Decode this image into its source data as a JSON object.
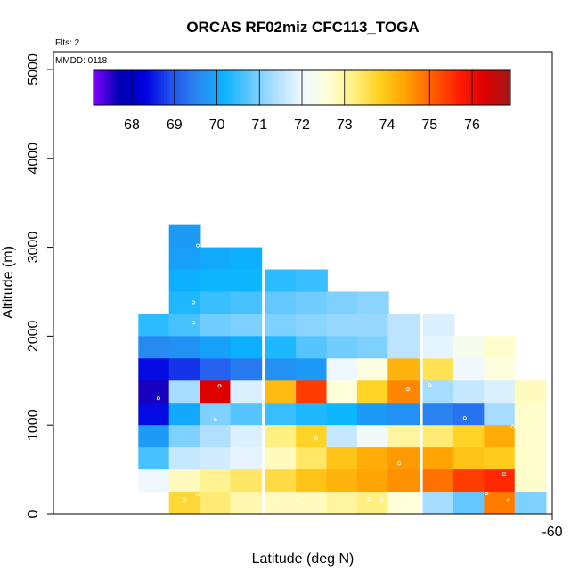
{
  "chart_data": {
    "type": "heatmap",
    "title": "ORCAS RF02miz CFC113_TOGA",
    "annotations": {
      "flights": "Flts: 2",
      "date": "MMDD: 0118"
    },
    "xlabel": "Latitude (deg N)",
    "ylabel": "Altitude (m)",
    "xlim": [
      -71.4,
      -60
    ],
    "ylim": [
      0,
      5200
    ],
    "x_tick_labels": [
      "-60"
    ],
    "y_tick_labels": [
      "0",
      "1000",
      "2000",
      "3000",
      "4000",
      "5000"
    ],
    "y_ticks": [
      0,
      1000,
      2000,
      3000,
      4000,
      5000
    ],
    "grid": false,
    "legend": "top (color bar)",
    "colorbar": {
      "min": 67.1,
      "max": 76.9,
      "tick_values": [
        68,
        69,
        70,
        71,
        72,
        73,
        74,
        75,
        76
      ],
      "tick_labels": [
        "68",
        "69",
        "70",
        "71",
        "72",
        "73",
        "74",
        "75",
        "76"
      ],
      "colors": [
        "#7f00ff",
        "#0000b0",
        "#0000e0",
        "#2255ee",
        "#2a86f0",
        "#09b4ff",
        "#61c7ff",
        "#b0e0ff",
        "#f0f8ff",
        "#ffffd8",
        "#ffef80",
        "#ffd020",
        "#ffa000",
        "#ff6000",
        "#ff2000",
        "#e00000",
        "#a01818"
      ]
    },
    "cell_size": {
      "lat_deg": 0.72,
      "alt_m": 250
    },
    "cells": [
      [
        -68.4,
        3125,
        69.8
      ],
      [
        -68.4,
        2875,
        69.9
      ],
      [
        -67.7,
        2875,
        70.0
      ],
      [
        -67.0,
        2875,
        70.1
      ],
      [
        -68.4,
        2625,
        70.1
      ],
      [
        -67.7,
        2625,
        70.2
      ],
      [
        -67.0,
        2625,
        70.2
      ],
      [
        -66.2,
        2625,
        70.4
      ],
      [
        -65.5,
        2625,
        70.5
      ],
      [
        -68.4,
        2375,
        70.3
      ],
      [
        -67.7,
        2375,
        70.5
      ],
      [
        -67.0,
        2375,
        70.6
      ],
      [
        -66.2,
        2375,
        70.8
      ],
      [
        -65.5,
        2375,
        70.9
      ],
      [
        -64.8,
        2375,
        71.0
      ],
      [
        -64.1,
        2375,
        71.1
      ],
      [
        -69.1,
        2125,
        70.4
      ],
      [
        -68.4,
        2125,
        70.6
      ],
      [
        -67.7,
        2125,
        70.9
      ],
      [
        -67.0,
        2125,
        71.0
      ],
      [
        -66.2,
        2125,
        71.0
      ],
      [
        -65.5,
        2125,
        71.1
      ],
      [
        -64.8,
        2125,
        71.2
      ],
      [
        -64.1,
        2125,
        71.2
      ],
      [
        -63.4,
        2125,
        71.5
      ],
      [
        -62.6,
        2125,
        71.8
      ],
      [
        -69.1,
        1875,
        69.6
      ],
      [
        -68.4,
        1875,
        69.7
      ],
      [
        -67.7,
        1875,
        69.9
      ],
      [
        -67.0,
        1875,
        70.1
      ],
      [
        -66.2,
        1875,
        70.3
      ],
      [
        -65.5,
        1875,
        70.7
      ],
      [
        -64.8,
        1875,
        70.9
      ],
      [
        -64.1,
        1875,
        71.0
      ],
      [
        -63.4,
        1875,
        71.5
      ],
      [
        -62.6,
        1875,
        71.9
      ],
      [
        -61.9,
        1875,
        72.3
      ],
      [
        -61.2,
        1875,
        72.7
      ],
      [
        -69.1,
        1625,
        68.4
      ],
      [
        -68.4,
        1625,
        68.7
      ],
      [
        -67.7,
        1625,
        69.1
      ],
      [
        -67.0,
        1625,
        69.4
      ],
      [
        -66.2,
        1625,
        69.7
      ],
      [
        -65.5,
        1625,
        69.8
      ],
      [
        -64.8,
        1625,
        72.0
      ],
      [
        -64.1,
        1625,
        72.5
      ],
      [
        -63.4,
        1625,
        74.2
      ],
      [
        -62.6,
        1625,
        73.5
      ],
      [
        -61.9,
        1625,
        72.0
      ],
      [
        -61.2,
        1625,
        72.5
      ],
      [
        -69.1,
        1375,
        67.6
      ],
      [
        -68.4,
        1375,
        71.3
      ],
      [
        -67.7,
        1375,
        76.3
      ],
      [
        -67.0,
        1375,
        71.8
      ],
      [
        -66.2,
        1375,
        74.1
      ],
      [
        -65.5,
        1375,
        75.4
      ],
      [
        -64.8,
        1375,
        72.6
      ],
      [
        -64.1,
        1375,
        73.8
      ],
      [
        -63.4,
        1375,
        74.7
      ],
      [
        -62.6,
        1375,
        71.3
      ],
      [
        -61.9,
        1375,
        71.6
      ],
      [
        -61.2,
        1375,
        71.8
      ],
      [
        -60.5,
        1375,
        72.8
      ],
      [
        -69.1,
        1125,
        68.4
      ],
      [
        -68.4,
        1125,
        70.0
      ],
      [
        -67.7,
        1125,
        71.0
      ],
      [
        -67.0,
        1125,
        70.7
      ],
      [
        -66.2,
        1125,
        70.5
      ],
      [
        -65.5,
        1125,
        70.3
      ],
      [
        -64.8,
        1125,
        70.2
      ],
      [
        -64.1,
        1125,
        69.8
      ],
      [
        -63.4,
        1125,
        69.7
      ],
      [
        -62.6,
        1125,
        69.5
      ],
      [
        -61.9,
        1125,
        69.3
      ],
      [
        -61.2,
        1125,
        71.3
      ],
      [
        -60.5,
        1125,
        72.7
      ],
      [
        -69.1,
        875,
        69.8
      ],
      [
        -68.4,
        875,
        71.0
      ],
      [
        -67.7,
        875,
        71.4
      ],
      [
        -67.0,
        875,
        71.8
      ],
      [
        -66.2,
        875,
        73.2
      ],
      [
        -65.5,
        875,
        73.8
      ],
      [
        -64.8,
        875,
        71.6
      ],
      [
        -64.1,
        875,
        72.1
      ],
      [
        -63.4,
        875,
        73.0
      ],
      [
        -62.6,
        875,
        73.3
      ],
      [
        -61.9,
        875,
        73.8
      ],
      [
        -61.2,
        875,
        74.3
      ],
      [
        -60.5,
        875,
        72.7
      ],
      [
        -69.1,
        625,
        70.6
      ],
      [
        -68.4,
        625,
        71.6
      ],
      [
        -67.7,
        625,
        71.7
      ],
      [
        -67.0,
        625,
        71.9
      ],
      [
        -66.2,
        625,
        72.8
      ],
      [
        -65.5,
        625,
        73.4
      ],
      [
        -64.8,
        625,
        74.0
      ],
      [
        -64.1,
        625,
        74.3
      ],
      [
        -63.4,
        625,
        74.5
      ],
      [
        -62.6,
        625,
        74.4
      ],
      [
        -61.9,
        625,
        74.0
      ],
      [
        -61.2,
        625,
        73.9
      ],
      [
        -60.5,
        625,
        72.7
      ],
      [
        -69.1,
        375,
        72.0
      ],
      [
        -68.4,
        375,
        72.8
      ],
      [
        -67.7,
        375,
        73.1
      ],
      [
        -67.0,
        375,
        73.4
      ],
      [
        -66.2,
        375,
        73.6
      ],
      [
        -65.5,
        375,
        74.0
      ],
      [
        -64.8,
        375,
        74.2
      ],
      [
        -64.1,
        375,
        74.4
      ],
      [
        -63.4,
        375,
        74.6
      ],
      [
        -62.6,
        375,
        74.9
      ],
      [
        -61.9,
        375,
        75.4
      ],
      [
        -61.2,
        375,
        75.6
      ],
      [
        -60.5,
        375,
        72.7
      ],
      [
        -68.4,
        125,
        73.7
      ],
      [
        -67.7,
        125,
        73.3
      ],
      [
        -67.0,
        125,
        72.9
      ],
      [
        -66.2,
        125,
        72.8
      ],
      [
        -65.5,
        125,
        72.8
      ],
      [
        -64.8,
        125,
        73.0
      ],
      [
        -64.1,
        125,
        73.2
      ],
      [
        -63.4,
        125,
        72.6
      ],
      [
        -62.6,
        125,
        71.3
      ],
      [
        -61.9,
        125,
        70.8
      ],
      [
        -61.2,
        125,
        74.8
      ],
      [
        -60.5,
        125,
        71.0
      ]
    ],
    "sample_points": [
      [
        -68.1,
        3020
      ],
      [
        -68.2,
        2380
      ],
      [
        -68.2,
        2150
      ],
      [
        -67.6,
        1440
      ],
      [
        -66.6,
        1470
      ],
      [
        -64.7,
        1440
      ],
      [
        -69.0,
        1300
      ],
      [
        -63.3,
        1400
      ],
      [
        -62.8,
        1450
      ],
      [
        -67.7,
        1060
      ],
      [
        -62.0,
        1080
      ],
      [
        -65.4,
        850
      ],
      [
        -63.5,
        570
      ],
      [
        -60.9,
        980
      ],
      [
        -61.1,
        450
      ],
      [
        -68.1,
        220
      ],
      [
        -68.4,
        160
      ],
      [
        -66.3,
        150
      ],
      [
        -65.8,
        160
      ],
      [
        -64.2,
        170
      ],
      [
        -63.9,
        160
      ],
      [
        -61.5,
        230
      ],
      [
        -61.0,
        150
      ]
    ]
  }
}
